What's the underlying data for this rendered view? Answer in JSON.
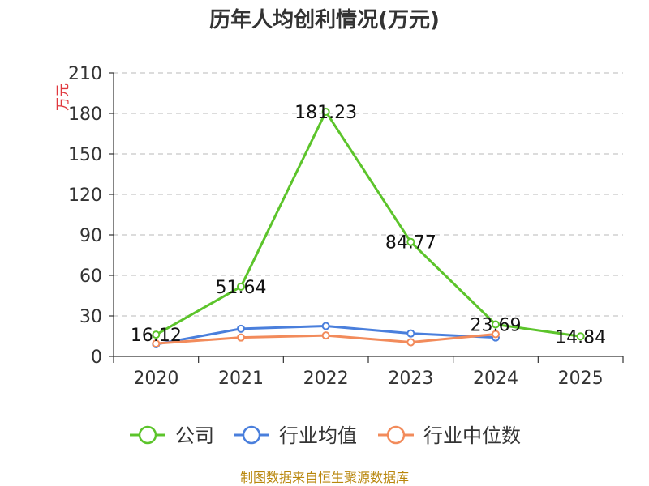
{
  "chart_data": {
    "type": "line",
    "title": "历年人均创利情况(万元)",
    "ylabel": "万元",
    "xlabel": "",
    "categories": [
      "2020",
      "2021",
      "2022",
      "2023",
      "2024",
      "2025"
    ],
    "ylim": [
      0,
      210
    ],
    "yticks": [
      "0",
      "30",
      "60",
      "90",
      "120",
      "150",
      "180",
      "210"
    ],
    "grid": true,
    "legend_position": "bottom",
    "series": [
      {
        "name": "公司",
        "color": "#5cc42b",
        "values": [
          16.12,
          51.64,
          181.23,
          84.77,
          23.69,
          14.84
        ],
        "labels": [
          "16.12",
          "51.64",
          "181.23",
          "84.77",
          "23.69",
          "14.84"
        ]
      },
      {
        "name": "行业均值",
        "color": "#4a7fdc",
        "values": [
          9,
          20.5,
          22.5,
          17,
          14,
          null
        ]
      },
      {
        "name": "行业中位数",
        "color": "#f28b5b",
        "values": [
          9.5,
          14,
          15.5,
          10.5,
          16.5,
          null
        ]
      }
    ]
  },
  "source": "制图数据来自恒生聚源数据库"
}
